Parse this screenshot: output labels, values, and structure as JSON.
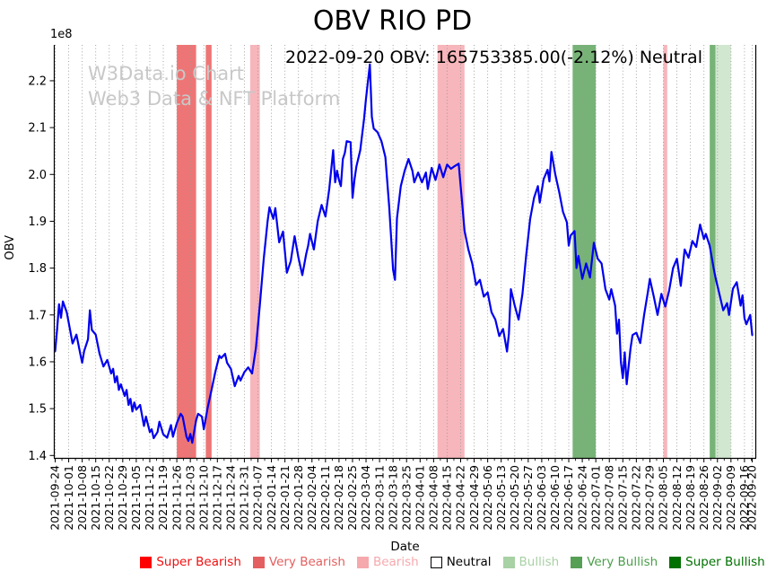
{
  "title": "OBV RIO PD",
  "annotation": "2022-09-20 OBV: 165753385.00(-2.12%) Neutral",
  "watermark": {
    "line1": "W3Data.io Chart",
    "line2": "Web3 Data & NFT Platform"
  },
  "axes": {
    "y_label": "OBV",
    "x_label": "Date",
    "y_scale_label": "1e8",
    "y_ticks": [
      "1.4",
      "1.5",
      "1.6",
      "1.7",
      "1.8",
      "1.9",
      "2.0",
      "2.1",
      "2.2"
    ],
    "x_ticks": [
      "2021-09-24",
      "2021-10-01",
      "2021-10-08",
      "2021-10-15",
      "2021-10-22",
      "2021-10-29",
      "2021-11-05",
      "2021-11-12",
      "2021-11-19",
      "2021-11-26",
      "2021-12-03",
      "2021-12-10",
      "2021-12-17",
      "2021-12-24",
      "2021-12-31",
      "2022-01-07",
      "2022-01-14",
      "2022-01-21",
      "2022-01-28",
      "2022-02-04",
      "2022-02-11",
      "2022-02-18",
      "2022-02-25",
      "2022-03-04",
      "2022-03-11",
      "2022-03-18",
      "2022-03-25",
      "2022-04-01",
      "2022-04-08",
      "2022-04-15",
      "2022-04-22",
      "2022-04-29",
      "2022-05-06",
      "2022-05-13",
      "2022-05-20",
      "2022-05-27",
      "2022-06-03",
      "2022-06-10",
      "2022-06-17",
      "2022-06-24",
      "2022-07-01",
      "2022-07-08",
      "2022-07-15",
      "2022-07-22",
      "2022-07-29",
      "2022-08-05",
      "2022-08-12",
      "2022-08-19",
      "2022-08-26",
      "2022-09-02",
      "2022-09-09",
      "2022-09-16",
      "2022-09-20"
    ]
  },
  "legend": {
    "items": [
      {
        "label": "Super Bearish",
        "color": "#ff0000",
        "text_color": "#ee1111"
      },
      {
        "label": "Very Bearish",
        "color": "#e45f5f",
        "text_color": "#e45f5f"
      },
      {
        "label": "Bearish",
        "color": "#f6a9ad",
        "text_color": "#f6a9ad"
      },
      {
        "label": "Neutral",
        "color": "#ffffff",
        "text_color": "#000000",
        "border": "#000000"
      },
      {
        "label": "Bullish",
        "color": "#a8d1a4",
        "text_color": "#a8d1a4"
      },
      {
        "label": "Very Bullish",
        "color": "#55a055",
        "text_color": "#4a9e4a"
      },
      {
        "label": "Super Bullish",
        "color": "#007000",
        "text_color": "#007000"
      }
    ]
  },
  "chart_data": {
    "type": "line",
    "title": "OBV RIO PD",
    "xlabel": "Date",
    "ylabel": "OBV",
    "y_unit": "1e8",
    "x_range": [
      "2021-09-24",
      "2022-09-20"
    ],
    "ylim": [
      1.394,
      2.276
    ],
    "grid": "vertical-dotted",
    "line_color": "#0000ee",
    "last_point": {
      "date": "2022-09-20",
      "obv": 165753385.0,
      "change_pct": -2.12,
      "signal": "Neutral"
    },
    "bands": [
      {
        "level": "Very Bearish",
        "start": "2021-11-26",
        "end": "2021-12-06",
        "color": "#ee7575"
      },
      {
        "level": "Very Bearish",
        "start": "2021-12-11",
        "end": "2021-12-14",
        "color": "#ee7575"
      },
      {
        "level": "Bearish",
        "start": "2022-01-03",
        "end": "2022-01-08",
        "color": "#f6b6bb"
      },
      {
        "level": "Bearish",
        "start": "2022-04-10",
        "end": "2022-04-24",
        "color": "#f6b6bb"
      },
      {
        "level": "Very Bullish",
        "start": "2022-06-19",
        "end": "2022-07-01",
        "color": "#77b377"
      },
      {
        "level": "Bearish",
        "start": "2022-08-05",
        "end": "2022-08-07",
        "color": "#f6b6bb"
      },
      {
        "level": "Very Bullish",
        "start": "2022-08-29",
        "end": "2022-09-01",
        "color": "#77b377"
      },
      {
        "level": "Bullish",
        "start": "2022-09-01",
        "end": "2022-09-09",
        "color": "#d2e7d0"
      }
    ],
    "points": [
      [
        "2021-09-24",
        1.623
      ],
      [
        "2021-09-25",
        1.67
      ],
      [
        "2021-09-26",
        1.723
      ],
      [
        "2021-09-27",
        1.694
      ],
      [
        "2021-09-28",
        1.729
      ],
      [
        "2021-09-30",
        1.706
      ],
      [
        "2021-10-02",
        1.662
      ],
      [
        "2021-10-03",
        1.639
      ],
      [
        "2021-10-05",
        1.658
      ],
      [
        "2021-10-07",
        1.617
      ],
      [
        "2021-10-08",
        1.598
      ],
      [
        "2021-10-09",
        1.623
      ],
      [
        "2021-10-11",
        1.648
      ],
      [
        "2021-10-12",
        1.71
      ],
      [
        "2021-10-13",
        1.668
      ],
      [
        "2021-10-15",
        1.658
      ],
      [
        "2021-10-17",
        1.617
      ],
      [
        "2021-10-19",
        1.59
      ],
      [
        "2021-10-21",
        1.604
      ],
      [
        "2021-10-23",
        1.575
      ],
      [
        "2021-10-24",
        1.585
      ],
      [
        "2021-10-25",
        1.556
      ],
      [
        "2021-10-26",
        1.569
      ],
      [
        "2021-10-27",
        1.54
      ],
      [
        "2021-10-28",
        1.552
      ],
      [
        "2021-10-30",
        1.527
      ],
      [
        "2021-10-31",
        1.54
      ],
      [
        "2021-11-01",
        1.508
      ],
      [
        "2021-11-02",
        1.521
      ],
      [
        "2021-11-03",
        1.494
      ],
      [
        "2021-11-04",
        1.513
      ],
      [
        "2021-11-05",
        1.498
      ],
      [
        "2021-11-07",
        1.508
      ],
      [
        "2021-11-09",
        1.463
      ],
      [
        "2021-11-10",
        1.483
      ],
      [
        "2021-11-12",
        1.45
      ],
      [
        "2021-11-13",
        1.456
      ],
      [
        "2021-11-14",
        1.437
      ],
      [
        "2021-11-16",
        1.45
      ],
      [
        "2021-11-17",
        1.472
      ],
      [
        "2021-11-19",
        1.445
      ],
      [
        "2021-11-21",
        1.438
      ],
      [
        "2021-11-23",
        1.465
      ],
      [
        "2021-11-24",
        1.44
      ],
      [
        "2021-11-26",
        1.469
      ],
      [
        "2021-11-28",
        1.489
      ],
      [
        "2021-11-29",
        1.483
      ],
      [
        "2021-12-01",
        1.44
      ],
      [
        "2021-12-02",
        1.431
      ],
      [
        "2021-12-03",
        1.446
      ],
      [
        "2021-12-04",
        1.427
      ],
      [
        "2021-12-06",
        1.475
      ],
      [
        "2021-12-07",
        1.489
      ],
      [
        "2021-12-09",
        1.483
      ],
      [
        "2021-12-10",
        1.456
      ],
      [
        "2021-12-12",
        1.502
      ],
      [
        "2021-12-14",
        1.54
      ],
      [
        "2021-12-16",
        1.579
      ],
      [
        "2021-12-18",
        1.613
      ],
      [
        "2021-12-19",
        1.608
      ],
      [
        "2021-12-21",
        1.617
      ],
      [
        "2021-12-22",
        1.598
      ],
      [
        "2021-12-24",
        1.585
      ],
      [
        "2021-12-26",
        1.548
      ],
      [
        "2021-12-28",
        1.57
      ],
      [
        "2021-12-29",
        1.56
      ],
      [
        "2021-12-31",
        1.578
      ],
      [
        "2022-01-02",
        1.588
      ],
      [
        "2022-01-04",
        1.575
      ],
      [
        "2022-01-06",
        1.63
      ],
      [
        "2022-01-08",
        1.72
      ],
      [
        "2022-01-10",
        1.82
      ],
      [
        "2022-01-12",
        1.9
      ],
      [
        "2022-01-13",
        1.93
      ],
      [
        "2022-01-15",
        1.905
      ],
      [
        "2022-01-16",
        1.928
      ],
      [
        "2022-01-18",
        1.855
      ],
      [
        "2022-01-20",
        1.878
      ],
      [
        "2022-01-22",
        1.79
      ],
      [
        "2022-01-24",
        1.815
      ],
      [
        "2022-01-26",
        1.868
      ],
      [
        "2022-01-28",
        1.822
      ],
      [
        "2022-01-30",
        1.785
      ],
      [
        "2022-02-01",
        1.83
      ],
      [
        "2022-02-02",
        1.848
      ],
      [
        "2022-02-03",
        1.873
      ],
      [
        "2022-02-05",
        1.84
      ],
      [
        "2022-02-07",
        1.9
      ],
      [
        "2022-02-09",
        1.935
      ],
      [
        "2022-02-11",
        1.91
      ],
      [
        "2022-02-13",
        1.97
      ],
      [
        "2022-02-15",
        2.052
      ],
      [
        "2022-02-16",
        1.983
      ],
      [
        "2022-02-17",
        2.008
      ],
      [
        "2022-02-18",
        1.988
      ],
      [
        "2022-02-19",
        1.975
      ],
      [
        "2022-02-20",
        2.033
      ],
      [
        "2022-02-21",
        2.046
      ],
      [
        "2022-02-22",
        2.071
      ],
      [
        "2022-02-24",
        2.069
      ],
      [
        "2022-02-25",
        1.95
      ],
      [
        "2022-02-26",
        1.988
      ],
      [
        "2022-02-27",
        2.017
      ],
      [
        "2022-03-01",
        2.052
      ],
      [
        "2022-03-03",
        2.12
      ],
      [
        "2022-03-04",
        2.162
      ],
      [
        "2022-03-06",
        2.235
      ],
      [
        "2022-03-07",
        2.123
      ],
      [
        "2022-03-08",
        2.098
      ],
      [
        "2022-03-10",
        2.09
      ],
      [
        "2022-03-12",
        2.071
      ],
      [
        "2022-03-14",
        2.037
      ],
      [
        "2022-03-16",
        1.93
      ],
      [
        "2022-03-18",
        1.796
      ],
      [
        "2022-03-19",
        1.775
      ],
      [
        "2022-03-20",
        1.906
      ],
      [
        "2022-03-22",
        1.975
      ],
      [
        "2022-03-24",
        2.008
      ],
      [
        "2022-03-26",
        2.033
      ],
      [
        "2022-03-28",
        2.008
      ],
      [
        "2022-03-29",
        1.983
      ],
      [
        "2022-03-31",
        2.004
      ],
      [
        "2022-04-02",
        1.983
      ],
      [
        "2022-04-04",
        2.004
      ],
      [
        "2022-04-05",
        1.969
      ],
      [
        "2022-04-07",
        2.014
      ],
      [
        "2022-04-09",
        1.988
      ],
      [
        "2022-04-11",
        2.021
      ],
      [
        "2022-04-13",
        1.994
      ],
      [
        "2022-04-15",
        2.021
      ],
      [
        "2022-04-17",
        2.012
      ],
      [
        "2022-04-19",
        2.018
      ],
      [
        "2022-04-21",
        2.023
      ],
      [
        "2022-04-23",
        1.93
      ],
      [
        "2022-04-24",
        1.88
      ],
      [
        "2022-04-26",
        1.84
      ],
      [
        "2022-04-28",
        1.81
      ],
      [
        "2022-04-30",
        1.764
      ],
      [
        "2022-05-02",
        1.775
      ],
      [
        "2022-05-04",
        1.739
      ],
      [
        "2022-05-06",
        1.748
      ],
      [
        "2022-05-08",
        1.706
      ],
      [
        "2022-05-10",
        1.69
      ],
      [
        "2022-05-12",
        1.655
      ],
      [
        "2022-05-14",
        1.67
      ],
      [
        "2022-05-16",
        1.622
      ],
      [
        "2022-05-17",
        1.66
      ],
      [
        "2022-05-18",
        1.755
      ],
      [
        "2022-05-20",
        1.72
      ],
      [
        "2022-05-22",
        1.69
      ],
      [
        "2022-05-24",
        1.745
      ],
      [
        "2022-05-26",
        1.83
      ],
      [
        "2022-05-28",
        1.905
      ],
      [
        "2022-05-30",
        1.95
      ],
      [
        "2022-06-01",
        1.975
      ],
      [
        "2022-06-02",
        1.94
      ],
      [
        "2022-06-04",
        1.99
      ],
      [
        "2022-06-06",
        2.01
      ],
      [
        "2022-06-07",
        1.985
      ],
      [
        "2022-06-08",
        2.048
      ],
      [
        "2022-06-10",
        2.0
      ],
      [
        "2022-06-12",
        1.963
      ],
      [
        "2022-06-14",
        1.92
      ],
      [
        "2022-06-16",
        1.898
      ],
      [
        "2022-06-17",
        1.848
      ],
      [
        "2022-06-18",
        1.87
      ],
      [
        "2022-06-20",
        1.879
      ],
      [
        "2022-06-21",
        1.8
      ],
      [
        "2022-06-22",
        1.826
      ],
      [
        "2022-06-24",
        1.777
      ],
      [
        "2022-06-26",
        1.81
      ],
      [
        "2022-06-28",
        1.78
      ],
      [
        "2022-06-30",
        1.854
      ],
      [
        "2022-07-02",
        1.82
      ],
      [
        "2022-07-04",
        1.81
      ],
      [
        "2022-07-06",
        1.755
      ],
      [
        "2022-07-08",
        1.733
      ],
      [
        "2022-07-09",
        1.755
      ],
      [
        "2022-07-11",
        1.72
      ],
      [
        "2022-07-12",
        1.66
      ],
      [
        "2022-07-13",
        1.69
      ],
      [
        "2022-07-14",
        1.6
      ],
      [
        "2022-07-15",
        1.565
      ],
      [
        "2022-07-16",
        1.62
      ],
      [
        "2022-07-17",
        1.552
      ],
      [
        "2022-07-19",
        1.629
      ],
      [
        "2022-07-20",
        1.657
      ],
      [
        "2022-07-22",
        1.662
      ],
      [
        "2022-07-24",
        1.64
      ],
      [
        "2022-07-26",
        1.7
      ],
      [
        "2022-07-28",
        1.75
      ],
      [
        "2022-07-29",
        1.777
      ],
      [
        "2022-07-31",
        1.74
      ],
      [
        "2022-08-02",
        1.7
      ],
      [
        "2022-08-04",
        1.745
      ],
      [
        "2022-08-06",
        1.718
      ],
      [
        "2022-08-08",
        1.752
      ],
      [
        "2022-08-10",
        1.8
      ],
      [
        "2022-08-12",
        1.82
      ],
      [
        "2022-08-14",
        1.762
      ],
      [
        "2022-08-16",
        1.84
      ],
      [
        "2022-08-18",
        1.822
      ],
      [
        "2022-08-20",
        1.858
      ],
      [
        "2022-08-22",
        1.845
      ],
      [
        "2022-08-24",
        1.893
      ],
      [
        "2022-08-26",
        1.862
      ],
      [
        "2022-08-27",
        1.873
      ],
      [
        "2022-08-29",
        1.848
      ],
      [
        "2022-08-31",
        1.8
      ],
      [
        "2022-09-01",
        1.78
      ],
      [
        "2022-09-03",
        1.745
      ],
      [
        "2022-09-05",
        1.71
      ],
      [
        "2022-09-07",
        1.725
      ],
      [
        "2022-09-08",
        1.7
      ],
      [
        "2022-09-10",
        1.756
      ],
      [
        "2022-09-12",
        1.77
      ],
      [
        "2022-09-14",
        1.72
      ],
      [
        "2022-09-15",
        1.742
      ],
      [
        "2022-09-16",
        1.693
      ],
      [
        "2022-09-17",
        1.68
      ],
      [
        "2022-09-19",
        1.7
      ],
      [
        "2022-09-20",
        1.6575
      ]
    ]
  }
}
